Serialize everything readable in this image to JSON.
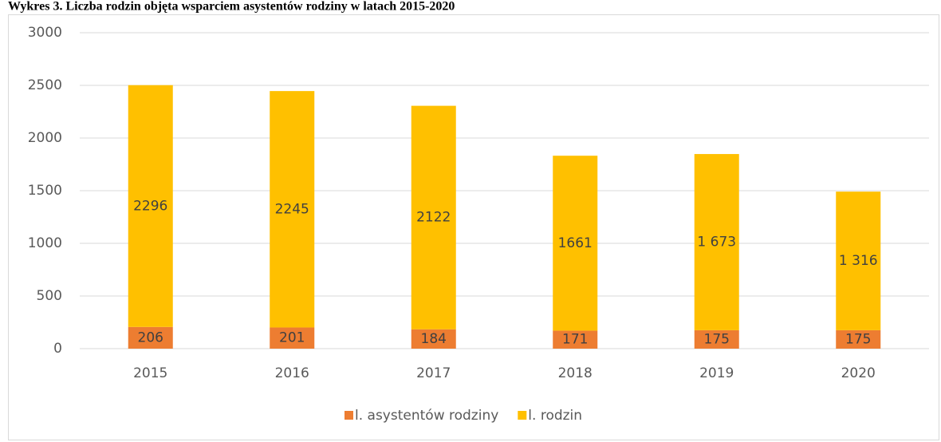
{
  "chart_data": {
    "type": "stacked_bar",
    "title": "Wykres 3. Liczba rodzin objęta wsparciem asystentów rodziny w latach 2015-2020",
    "categories": [
      "2015",
      "2016",
      "2017",
      "2018",
      "2019",
      "2020"
    ],
    "series": [
      {
        "name": "l. asystentów rodziny",
        "color": "#ED7D31",
        "values": [
          206,
          201,
          184,
          171,
          175,
          175
        ]
      },
      {
        "name": "l. rodzin",
        "color": "#FFC000",
        "values": [
          2296,
          2245,
          2122,
          1661,
          1673,
          1316
        ],
        "value_labels": [
          "2296",
          "2245",
          "2122",
          "1661",
          "1 673",
          "1 316"
        ]
      }
    ],
    "ylim": [
      0,
      3000
    ],
    "yticks": [
      0,
      500,
      1000,
      1500,
      2000,
      2500,
      3000
    ],
    "grid": true,
    "legend": "bottom"
  }
}
